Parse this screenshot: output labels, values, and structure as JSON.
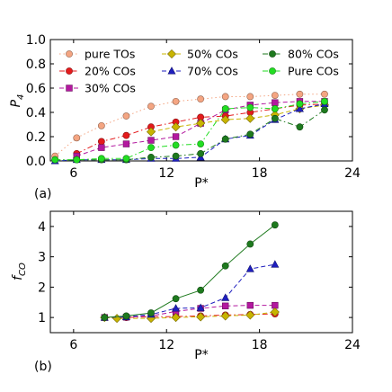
{
  "chart_data": [
    {
      "type": "line",
      "panel_label": "(a)",
      "xlabel": "P*",
      "ylabel": "P4",
      "ylabel_main": "P",
      "ylabel_sub": "4",
      "xlim": [
        4.5,
        24
      ],
      "ylim": [
        0,
        1.0
      ],
      "xticks": [
        "6",
        "12",
        "18",
        "24"
      ],
      "yticks": [
        "0.0",
        "0.2",
        "0.4",
        "0.6",
        "0.8",
        "1.0"
      ],
      "grid": false,
      "legend_position": "top",
      "series": [
        {
          "name": "pure TOs",
          "color": "#f4a582",
          "marker": "circle",
          "dash": "dotted",
          "x": [
            4.8,
            6.2,
            7.8,
            9.4,
            11.0,
            12.6,
            14.2,
            15.8,
            17.4,
            19.0,
            20.6,
            22.2
          ],
          "y": [
            0.04,
            0.19,
            0.29,
            0.37,
            0.45,
            0.49,
            0.51,
            0.53,
            0.53,
            0.54,
            0.55,
            0.55
          ]
        },
        {
          "name": "20% COs",
          "color": "#e41a1c",
          "marker": "circle",
          "dash": "dashdot",
          "x": [
            6.2,
            7.8,
            9.4,
            11.0,
            12.6,
            14.2,
            15.8,
            17.4,
            19.0,
            20.6,
            22.2
          ],
          "y": [
            0.06,
            0.16,
            0.21,
            0.28,
            0.32,
            0.36,
            0.37,
            0.4,
            0.43,
            0.46,
            0.47
          ]
        },
        {
          "name": "30% COs",
          "color": "#b3189f",
          "marker": "square",
          "dash": "dashed",
          "x": [
            6.2,
            7.8,
            9.4,
            11.0,
            12.6,
            14.2,
            15.8,
            17.4,
            19.0,
            20.6,
            22.2
          ],
          "y": [
            0.04,
            0.11,
            0.14,
            0.17,
            0.2,
            0.31,
            0.42,
            0.46,
            0.48,
            0.49,
            0.49
          ]
        },
        {
          "name": "50% COs",
          "color": "#c8b400",
          "marker": "diamond",
          "dash": "dashed",
          "x": [
            11.0,
            12.6,
            14.2,
            15.8,
            17.4,
            19.0,
            20.6,
            22.2
          ],
          "y": [
            0.24,
            0.28,
            0.31,
            0.34,
            0.35,
            0.38,
            0.43,
            0.46
          ]
        },
        {
          "name": "70% COs",
          "color": "#1f1fbf",
          "marker": "triangle",
          "dash": "dashed",
          "x": [
            4.8,
            6.2,
            7.8,
            9.4,
            11.0,
            12.6,
            14.2,
            15.8,
            17.4,
            19.0,
            20.6,
            22.2
          ],
          "y": [
            0.0,
            0.01,
            0.01,
            0.01,
            0.02,
            0.02,
            0.03,
            0.18,
            0.21,
            0.34,
            0.43,
            0.47
          ]
        },
        {
          "name": "80% COs",
          "color": "#1e7a1e",
          "marker": "circle",
          "dash": "dashdot",
          "x": [
            4.8,
            6.2,
            7.8,
            9.4,
            11.0,
            12.6,
            14.2,
            15.8,
            17.4,
            19.0,
            20.6,
            22.2
          ],
          "y": [
            0.01,
            0.01,
            0.01,
            0.01,
            0.03,
            0.04,
            0.06,
            0.18,
            0.22,
            0.35,
            0.28,
            0.42
          ]
        },
        {
          "name": "Pure COs",
          "color": "#22dd22",
          "marker": "circle",
          "dash": "dashdot",
          "x": [
            4.8,
            6.2,
            7.8,
            9.4,
            11.0,
            12.6,
            14.2,
            15.8,
            17.4,
            19.0,
            20.6,
            22.2
          ],
          "y": [
            0.01,
            0.01,
            0.02,
            0.02,
            0.11,
            0.13,
            0.14,
            0.43,
            0.44,
            0.43,
            0.47,
            0.49
          ]
        }
      ]
    },
    {
      "type": "line",
      "panel_label": "(b)",
      "xlabel": "P*",
      "ylabel": "fCO",
      "ylabel_main": "f",
      "ylabel_sub": "CO",
      "xlim": [
        4.5,
        24
      ],
      "ylim": [
        0.5,
        4.5
      ],
      "xticks": [
        "6",
        "12",
        "18",
        "24"
      ],
      "yticks": [
        "1",
        "2",
        "3",
        "4"
      ],
      "grid": false,
      "series": [
        {
          "name": "20% COs",
          "color": "#e41a1c",
          "marker": "circle",
          "dash": "dashdot",
          "x": [
            8.0,
            9.4,
            11.0,
            12.6,
            14.2,
            15.8,
            17.4,
            19.0
          ],
          "y": [
            1.0,
            1.0,
            1.02,
            1.03,
            1.05,
            1.08,
            1.1,
            1.12
          ]
        },
        {
          "name": "30% COs",
          "color": "#b3189f",
          "marker": "square",
          "dash": "dashed",
          "x": [
            8.0,
            9.4,
            11.0,
            12.6,
            14.2,
            15.8,
            17.4,
            19.0
          ],
          "y": [
            1.0,
            1.01,
            1.05,
            1.2,
            1.3,
            1.38,
            1.4,
            1.4
          ]
        },
        {
          "name": "50% COs",
          "color": "#c8b400",
          "marker": "diamond",
          "dash": "dashed",
          "x": [
            8.0,
            8.8,
            11.0,
            12.6,
            14.2,
            15.8,
            17.4,
            19.0
          ],
          "y": [
            1.0,
            0.97,
            0.97,
            1.0,
            1.02,
            1.05,
            1.08,
            1.18
          ]
        },
        {
          "name": "70% COs",
          "color": "#1f1fbf",
          "marker": "triangle",
          "dash": "dashed",
          "x": [
            8.0,
            9.4,
            11.0,
            12.6,
            14.2,
            15.8,
            17.4,
            19.0
          ],
          "y": [
            1.0,
            1.02,
            1.1,
            1.3,
            1.32,
            1.65,
            2.6,
            2.75
          ]
        },
        {
          "name": "80% COs",
          "color": "#1e7a1e",
          "marker": "circle",
          "dash": "solid",
          "x": [
            8.0,
            9.4,
            11.0,
            12.6,
            14.2,
            15.8,
            17.4,
            19.0
          ],
          "y": [
            1.0,
            1.05,
            1.15,
            1.62,
            1.9,
            2.7,
            3.42,
            4.05
          ]
        }
      ]
    }
  ]
}
